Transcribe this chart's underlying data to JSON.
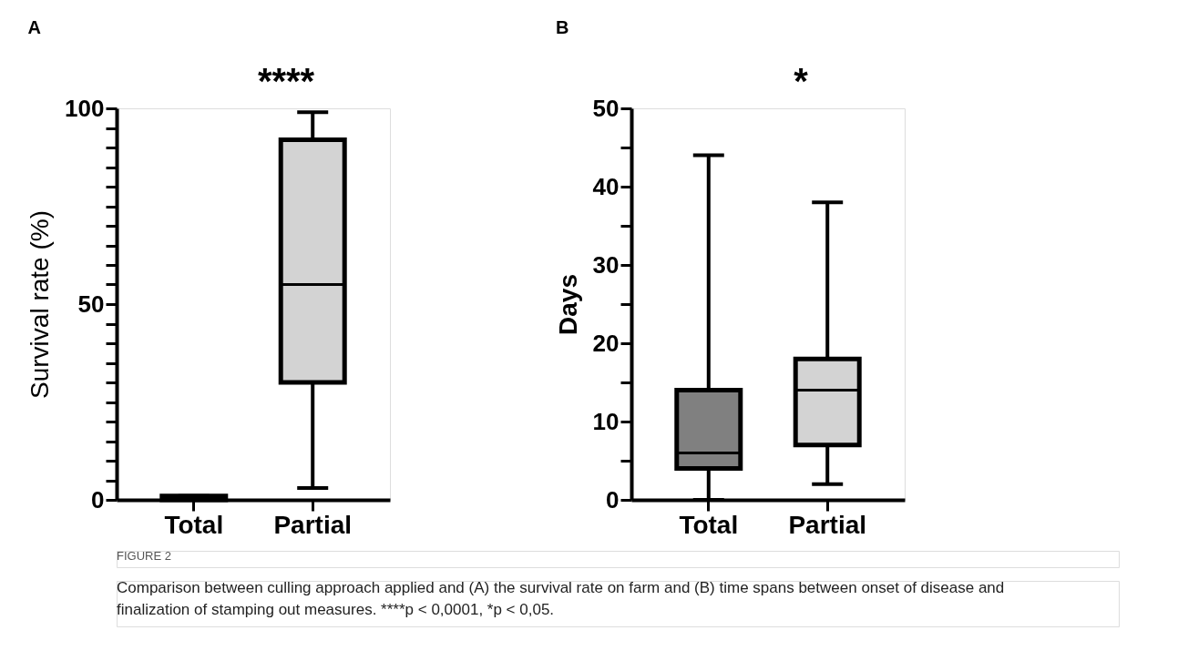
{
  "chart_data": [
    {
      "type": "box",
      "title": "A",
      "ylabel": "Survival rate (%)",
      "categories": [
        "Total",
        "Partial"
      ],
      "boxes": [
        {
          "low": 0,
          "q1": 0,
          "median": 0,
          "q3": 1,
          "high": 1
        },
        {
          "low": 3,
          "q1": 30,
          "median": 55,
          "q3": 92,
          "high": 99
        }
      ],
      "colors": [
        "#000000",
        "#d3d3d3"
      ],
      "ylim": [
        0,
        100
      ],
      "yticks": [
        0,
        {
          "value": 5,
          "label": null
        },
        {
          "value": 10,
          "label": null
        },
        {
          "value": 15,
          "label": null
        },
        {
          "value": 20,
          "label": null
        },
        {
          "value": 25,
          "label": null
        },
        {
          "value": 30,
          "label": null
        },
        {
          "value": 35,
          "label": null
        },
        {
          "value": 40,
          "label": null
        },
        {
          "value": 45,
          "label": null
        },
        50,
        {
          "value": 55,
          "label": null
        },
        {
          "value": 60,
          "label": null
        },
        {
          "value": 65,
          "label": null
        },
        {
          "value": 70,
          "label": null
        },
        {
          "value": 75,
          "label": null
        },
        {
          "value": 80,
          "label": null
        },
        {
          "value": 85,
          "label": null
        },
        {
          "value": 90,
          "label": null
        },
        {
          "value": 95,
          "label": null
        },
        100
      ],
      "annotations": [
        "****"
      ]
    },
    {
      "type": "box",
      "title": "B",
      "ylabel": "Days",
      "categories": [
        "Total",
        "Partial"
      ],
      "boxes": [
        {
          "low": 0,
          "q1": 4,
          "median": 6,
          "q3": 14,
          "high": 44
        },
        {
          "low": 2,
          "q1": 7,
          "median": 14,
          "q3": 18,
          "high": 38
        }
      ],
      "colors": [
        "#808080",
        "#d3d3d3"
      ],
      "ylim": [
        0,
        50
      ],
      "yticks": [
        0,
        {
          "value": 5,
          "label": null
        },
        10,
        {
          "value": 15,
          "label": null
        },
        20,
        {
          "value": 25,
          "label": null
        },
        30,
        {
          "value": 35,
          "label": null
        },
        40,
        {
          "value": 45,
          "label": null
        },
        50
      ],
      "annotations": [
        "*",
        "FIGURE 2",
        "Comparison between culling approach applied and (A) the survival rate on farm and (B) time spans between onset of disease and finalization of stamping out measures. ****p < 0,0001, *p < 0,05."
      ]
    }
  ]
}
